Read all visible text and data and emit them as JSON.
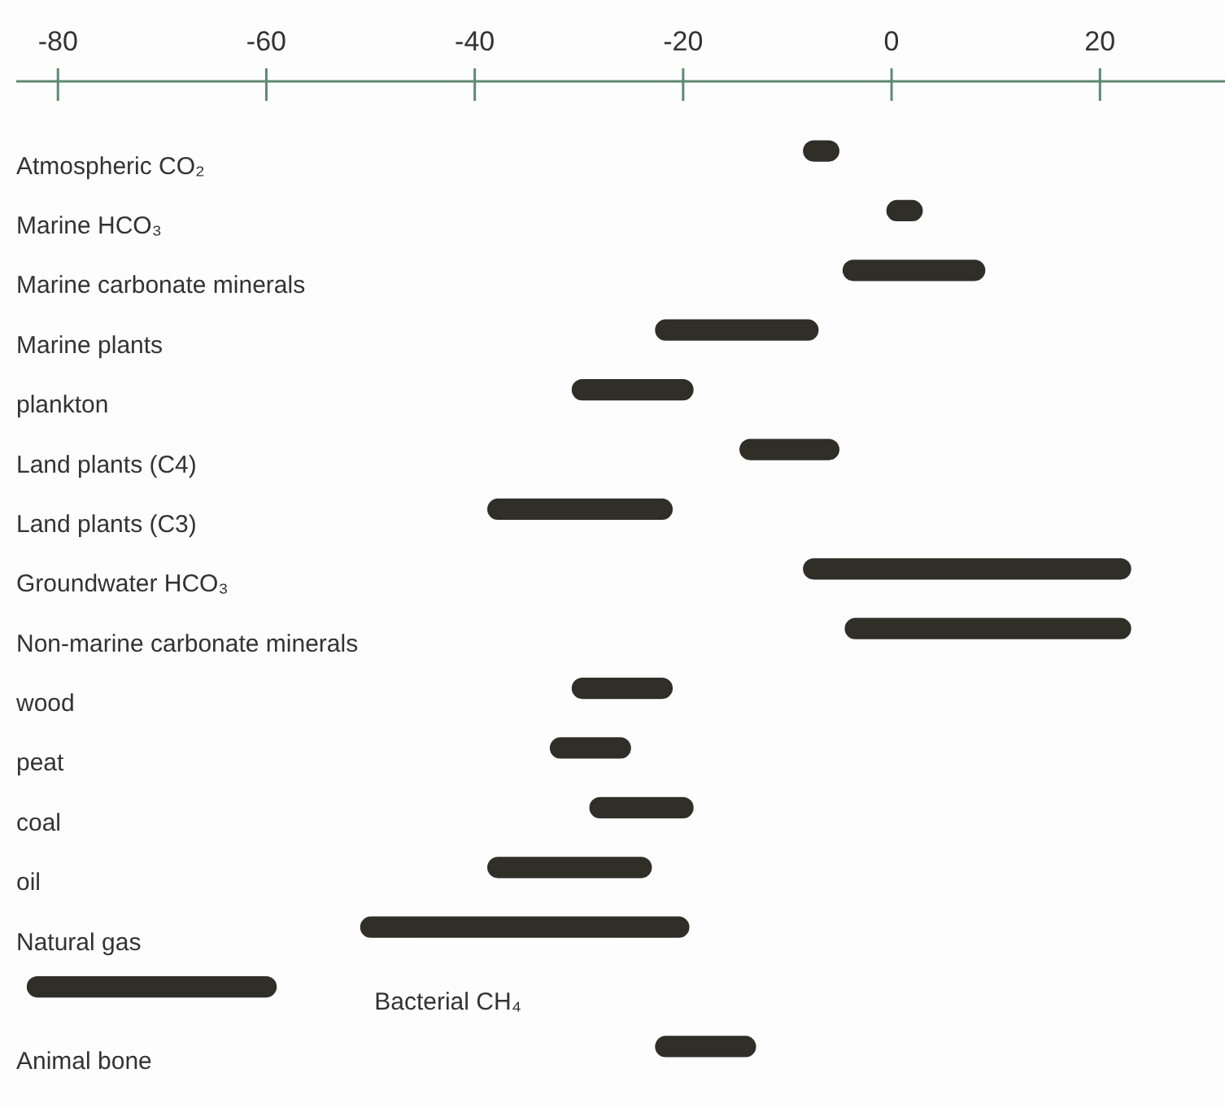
{
  "chart_data": {
    "type": "bar",
    "orientation": "horizontal",
    "categories": [
      "Atmospheric CO₂",
      "Marine HCO₃",
      "Marine carbonate minerals",
      "Marine plants",
      "plankton",
      "Land plants (C4)",
      "Land plants (C3)",
      "Groundwater HCO₃",
      "Non-marine carbonate minerals",
      "wood",
      "peat",
      "coal",
      "oil",
      "Natural gas",
      "Bacterial CH₄",
      "Animal bone"
    ],
    "base": [
      -8.5,
      -0.5,
      -4.7,
      -22.7,
      -30.7,
      -14.6,
      -38.8,
      -8.5,
      -4.5,
      -30.7,
      -32.8,
      -29,
      -38.8,
      -51,
      -83,
      -22.7
    ],
    "values": [
      3.5,
      3.5,
      13.7,
      15.7,
      11.7,
      9.6,
      17.8,
      31.5,
      27.5,
      9.7,
      7.8,
      10,
      15.8,
      31.6,
      24,
      9.7
    ],
    "color": "#2f2f28",
    "xlim": [
      -84,
      32
    ],
    "xticks": [
      -80,
      -60,
      -40,
      -20,
      0,
      20
    ],
    "grid": false
  }
}
